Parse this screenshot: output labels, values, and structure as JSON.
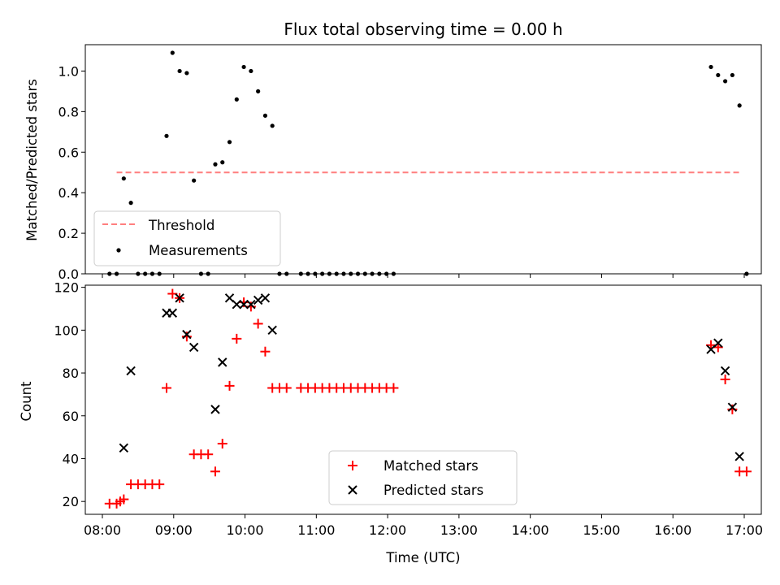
{
  "chart_data": [
    {
      "type": "line",
      "title": "Flux total observing time = 0.00 h",
      "xlabel": "",
      "ylabel": "Matched/Predicted stars",
      "xlim": [
        "08:00",
        "17:00"
      ],
      "ylim": [
        0,
        1.13
      ],
      "yticks": [
        0.0,
        0.2,
        0.4,
        0.6,
        0.8,
        1.0
      ],
      "threshold": {
        "name": "Threshold",
        "value": 0.5,
        "x_start": "08:12",
        "x_end": "16:56",
        "color": "#ff7f7f"
      },
      "measurements": {
        "name": "Measurements",
        "color": "#000000",
        "points": [
          [
            "08:06",
            0.0
          ],
          [
            "08:12",
            0.0
          ],
          [
            "08:18",
            0.47
          ],
          [
            "08:24",
            0.35
          ],
          [
            "08:30",
            0.0
          ],
          [
            "08:36",
            0.0
          ],
          [
            "08:42",
            0.0
          ],
          [
            "08:48",
            0.0
          ],
          [
            "08:54",
            0.68
          ],
          [
            "08:59",
            1.09
          ],
          [
            "09:05",
            1.0
          ],
          [
            "09:11",
            0.99
          ],
          [
            "09:17",
            0.46
          ],
          [
            "09:23",
            0.0
          ],
          [
            "09:29",
            0.0
          ],
          [
            "09:35",
            0.54
          ],
          [
            "09:41",
            0.55
          ],
          [
            "09:47",
            0.65
          ],
          [
            "09:53",
            0.86
          ],
          [
            "09:59",
            1.02
          ],
          [
            "10:05",
            1.0
          ],
          [
            "10:11",
            0.9
          ],
          [
            "10:17",
            0.78
          ],
          [
            "10:23",
            0.73
          ],
          [
            "10:29",
            0.0
          ],
          [
            "10:35",
            0.0
          ],
          [
            "10:47",
            0.0
          ],
          [
            "10:53",
            0.0
          ],
          [
            "10:59",
            0.0
          ],
          [
            "11:05",
            0.0
          ],
          [
            "11:11",
            0.0
          ],
          [
            "11:17",
            0.0
          ],
          [
            "11:23",
            0.0
          ],
          [
            "11:29",
            0.0
          ],
          [
            "11:35",
            0.0
          ],
          [
            "11:41",
            0.0
          ],
          [
            "11:47",
            0.0
          ],
          [
            "11:53",
            0.0
          ],
          [
            "11:59",
            0.0
          ],
          [
            "12:05",
            0.0
          ],
          [
            "16:32",
            1.02
          ],
          [
            "16:38",
            0.98
          ],
          [
            "16:44",
            0.95
          ],
          [
            "16:50",
            0.98
          ],
          [
            "16:56",
            0.83
          ],
          [
            "17:02",
            0.0
          ]
        ]
      },
      "legend": {
        "position": "lower left",
        "entries": [
          "Threshold",
          "Measurements"
        ]
      }
    },
    {
      "type": "scatter",
      "xlabel": "Time (UTC)",
      "ylabel": "Count",
      "xlim": [
        "08:00",
        "17:00"
      ],
      "ylim": [
        14,
        121
      ],
      "yticks": [
        20,
        40,
        60,
        80,
        100,
        120
      ],
      "xticks": [
        "08:00",
        "09:00",
        "10:00",
        "11:00",
        "12:00",
        "13:00",
        "14:00",
        "15:00",
        "16:00",
        "17:00"
      ],
      "series": [
        {
          "name": "Matched stars",
          "marker": "+",
          "color": "#ff0000",
          "points": [
            [
              "08:06",
              19
            ],
            [
              "08:12",
              19
            ],
            [
              "08:15",
              20
            ],
            [
              "08:18",
              21
            ],
            [
              "08:24",
              28
            ],
            [
              "08:30",
              28
            ],
            [
              "08:36",
              28
            ],
            [
              "08:42",
              28
            ],
            [
              "08:48",
              28
            ],
            [
              "08:54",
              73
            ],
            [
              "08:59",
              117
            ],
            [
              "09:05",
              115
            ],
            [
              "09:11",
              97
            ],
            [
              "09:17",
              42
            ],
            [
              "09:23",
              42
            ],
            [
              "09:29",
              42
            ],
            [
              "09:35",
              34
            ],
            [
              "09:41",
              47
            ],
            [
              "09:47",
              74
            ],
            [
              "09:53",
              96
            ],
            [
              "09:59",
              113
            ],
            [
              "10:05",
              111
            ],
            [
              "10:11",
              103
            ],
            [
              "10:17",
              90
            ],
            [
              "10:23",
              73
            ],
            [
              "10:29",
              73
            ],
            [
              "10:35",
              73
            ],
            [
              "10:47",
              73
            ],
            [
              "10:53",
              73
            ],
            [
              "10:59",
              73
            ],
            [
              "11:05",
              73
            ],
            [
              "11:11",
              73
            ],
            [
              "11:17",
              73
            ],
            [
              "11:23",
              73
            ],
            [
              "11:29",
              73
            ],
            [
              "11:35",
              73
            ],
            [
              "11:41",
              73
            ],
            [
              "11:47",
              73
            ],
            [
              "11:53",
              73
            ],
            [
              "11:59",
              73
            ],
            [
              "12:05",
              73
            ],
            [
              "16:32",
              93
            ],
            [
              "16:38",
              92
            ],
            [
              "16:44",
              77
            ],
            [
              "16:50",
              63
            ],
            [
              "16:56",
              34
            ],
            [
              "17:02",
              34
            ]
          ]
        },
        {
          "name": "Predicted stars",
          "marker": "x",
          "color": "#000000",
          "points": [
            [
              "08:18",
              45
            ],
            [
              "08:24",
              81
            ],
            [
              "08:54",
              108
            ],
            [
              "08:59",
              108
            ],
            [
              "09:05",
              115
            ],
            [
              "09:11",
              98
            ],
            [
              "09:17",
              92
            ],
            [
              "09:35",
              63
            ],
            [
              "09:41",
              85
            ],
            [
              "09:47",
              115
            ],
            [
              "09:53",
              112
            ],
            [
              "09:59",
              112
            ],
            [
              "10:05",
              112
            ],
            [
              "10:11",
              114
            ],
            [
              "10:17",
              115
            ],
            [
              "10:23",
              100
            ],
            [
              "16:32",
              91
            ],
            [
              "16:38",
              94
            ],
            [
              "16:44",
              81
            ],
            [
              "16:50",
              64
            ],
            [
              "16:56",
              41
            ]
          ]
        }
      ],
      "legend": {
        "position": "lower center",
        "entries": [
          "Matched stars",
          "Predicted stars"
        ]
      }
    }
  ]
}
